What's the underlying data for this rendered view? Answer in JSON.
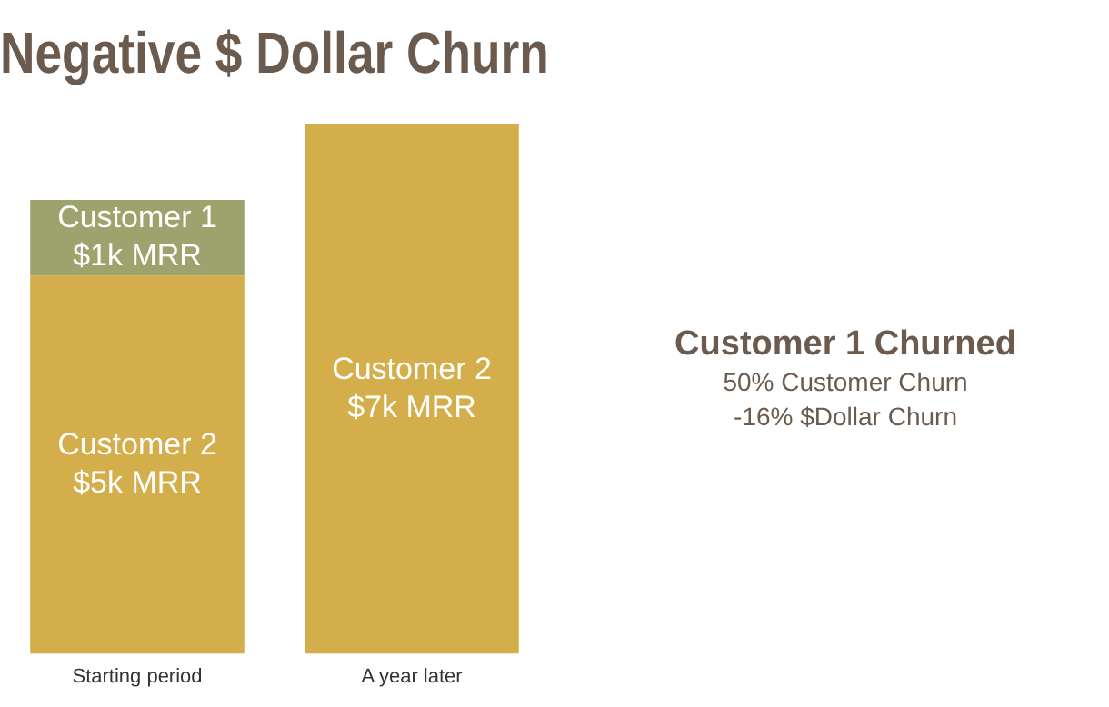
{
  "chart_data": {
    "type": "bar",
    "title": "Negative $ Dollar Churn",
    "stacked": true,
    "categories": [
      "Starting period",
      "A year later"
    ],
    "series": [
      {
        "name": "Customer 2",
        "color": "#d3ae4a",
        "values": [
          5,
          7
        ],
        "value_labels": [
          "$5k MRR",
          "$7k MRR"
        ]
      },
      {
        "name": "Customer 1",
        "color": "#9ea36e",
        "values": [
          1,
          null
        ],
        "value_labels": [
          "$1k MRR",
          null
        ]
      }
    ],
    "annotations": [
      "Customer 1 Churned",
      "50% Customer Churn",
      "-16% $Dollar Churn"
    ],
    "grid": false,
    "legend": false
  }
}
